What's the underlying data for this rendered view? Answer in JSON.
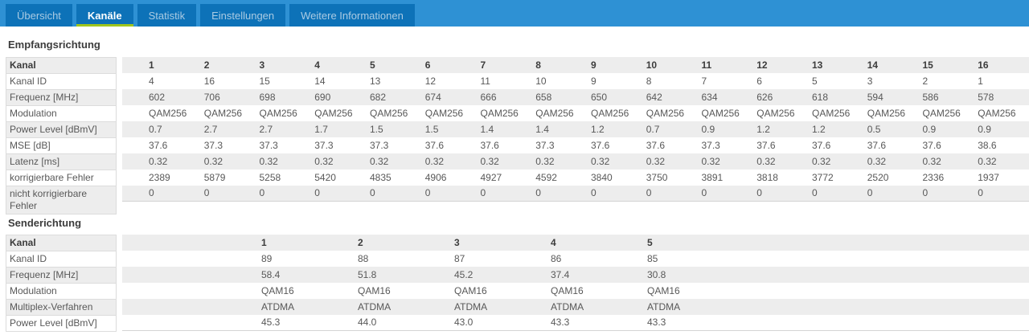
{
  "tabs": [
    {
      "label": "Übersicht",
      "active": false
    },
    {
      "label": "Kanäle",
      "active": true
    },
    {
      "label": "Statistik",
      "active": false
    },
    {
      "label": "Einstellungen",
      "active": false
    },
    {
      "label": "Weitere Informationen",
      "active": false
    }
  ],
  "colors": {
    "bar_blue": "#2e91d4",
    "tab_blue": "#0d72b8",
    "active_underline_green": "#9fc51d",
    "row_stripe_gray": "#ededed",
    "text_gray": "#585858"
  },
  "sections": [
    {
      "title": "Empfangsrichtung",
      "corner": "Kanal",
      "columns": [
        "1",
        "2",
        "3",
        "4",
        "5",
        "6",
        "7",
        "8",
        "9",
        "10",
        "11",
        "12",
        "13",
        "14",
        "15",
        "16"
      ],
      "rows": [
        {
          "label": "Kanal ID",
          "values": [
            "4",
            "16",
            "15",
            "14",
            "13",
            "12",
            "11",
            "10",
            "9",
            "8",
            "7",
            "6",
            "5",
            "3",
            "2",
            "1"
          ]
        },
        {
          "label": "Frequenz [MHz]",
          "values": [
            "602",
            "706",
            "698",
            "690",
            "682",
            "674",
            "666",
            "658",
            "650",
            "642",
            "634",
            "626",
            "618",
            "594",
            "586",
            "578"
          ]
        },
        {
          "label": "Modulation",
          "values": [
            "QAM256",
            "QAM256",
            "QAM256",
            "QAM256",
            "QAM256",
            "QAM256",
            "QAM256",
            "QAM256",
            "QAM256",
            "QAM256",
            "QAM256",
            "QAM256",
            "QAM256",
            "QAM256",
            "QAM256",
            "QAM256"
          ]
        },
        {
          "label": "Power Level [dBmV]",
          "values": [
            "0.7",
            "2.7",
            "2.7",
            "1.7",
            "1.5",
            "1.5",
            "1.4",
            "1.4",
            "1.2",
            "0.7",
            "0.9",
            "1.2",
            "1.2",
            "0.5",
            "0.9",
            "0.9"
          ]
        },
        {
          "label": "MSE [dB]",
          "values": [
            "37.6",
            "37.3",
            "37.3",
            "37.3",
            "37.3",
            "37.6",
            "37.6",
            "37.3",
            "37.6",
            "37.6",
            "37.3",
            "37.6",
            "37.6",
            "37.6",
            "37.6",
            "38.6"
          ]
        },
        {
          "label": "Latenz [ms]",
          "values": [
            "0.32",
            "0.32",
            "0.32",
            "0.32",
            "0.32",
            "0.32",
            "0.32",
            "0.32",
            "0.32",
            "0.32",
            "0.32",
            "0.32",
            "0.32",
            "0.32",
            "0.32",
            "0.32"
          ]
        },
        {
          "label": "korrigierbare Fehler",
          "values": [
            "2389",
            "5879",
            "5258",
            "5420",
            "4835",
            "4906",
            "4927",
            "4592",
            "3840",
            "3750",
            "3891",
            "3818",
            "3772",
            "2520",
            "2336",
            "1937"
          ]
        },
        {
          "label": "nicht korrigierbare Fehler",
          "values": [
            "0",
            "0",
            "0",
            "0",
            "0",
            "0",
            "0",
            "0",
            "0",
            "0",
            "0",
            "0",
            "0",
            "0",
            "0",
            "0"
          ]
        }
      ]
    },
    {
      "title": "Senderichtung",
      "corner": "Kanal",
      "columns": [
        "1",
        "2",
        "3",
        "4",
        "5"
      ],
      "rows": [
        {
          "label": "Kanal ID",
          "values": [
            "89",
            "88",
            "87",
            "86",
            "85"
          ]
        },
        {
          "label": "Frequenz [MHz]",
          "values": [
            "58.4",
            "51.8",
            "45.2",
            "37.4",
            "30.8"
          ]
        },
        {
          "label": "Modulation",
          "values": [
            "QAM16",
            "QAM16",
            "QAM16",
            "QAM16",
            "QAM16"
          ]
        },
        {
          "label": "Multiplex-Verfahren",
          "values": [
            "ATDMA",
            "ATDMA",
            "ATDMA",
            "ATDMA",
            "ATDMA"
          ]
        },
        {
          "label": "Power Level [dBmV]",
          "values": [
            "45.3",
            "44.0",
            "43.0",
            "43.3",
            "43.3"
          ]
        }
      ]
    }
  ]
}
